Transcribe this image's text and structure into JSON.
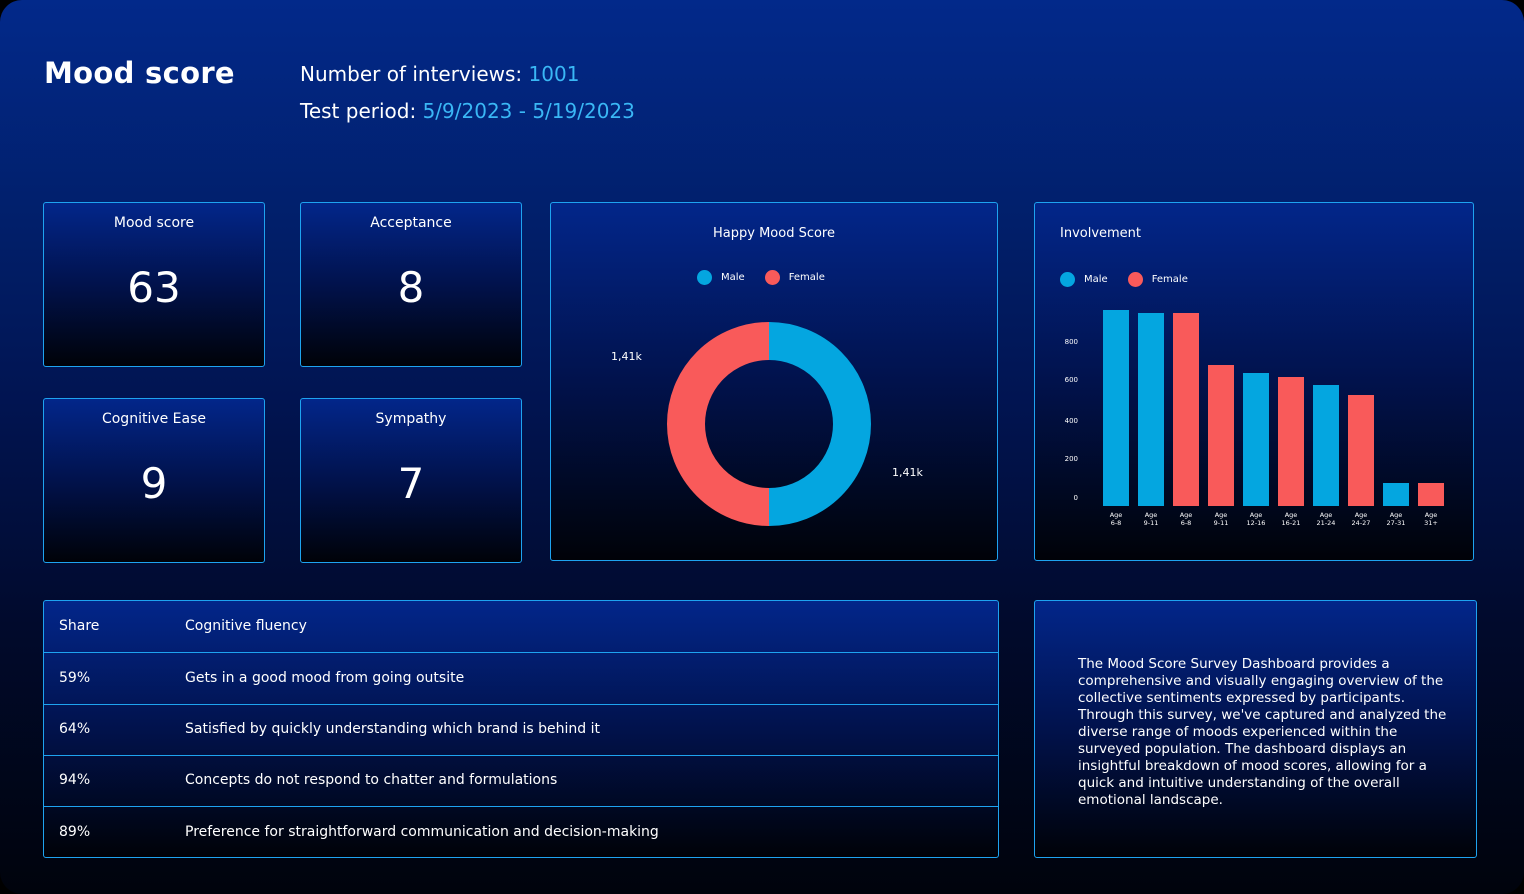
{
  "header": {
    "title": "Mood score",
    "interviews_label": "Number of interviews:",
    "interviews_value": "1001",
    "period_label": "Test period:",
    "period_value": "5/9/2023 - 5/19/2023"
  },
  "kpis": [
    {
      "label": "Mood score",
      "value": "63"
    },
    {
      "label": "Acceptance",
      "value": "8"
    },
    {
      "label": "Cognitive Ease",
      "value": "9"
    },
    {
      "label": "Sympathy",
      "value": "7"
    }
  ],
  "colors": {
    "male": "#04a6e0",
    "female": "#f95a5a",
    "border": "#1ea3f0"
  },
  "donut": {
    "title": "Happy Mood Score",
    "legend": [
      "Male",
      "Female"
    ],
    "labels": {
      "female": "1,41k",
      "male": "1,41k"
    }
  },
  "involvement": {
    "title": "Involvement",
    "legend": [
      "Male",
      "Female"
    ]
  },
  "chart_data": [
    {
      "type": "pie",
      "title": "Happy Mood Score",
      "categories": [
        "Male",
        "Female"
      ],
      "values": [
        1410,
        1410
      ],
      "value_labels": [
        "1,41k",
        "1,41k"
      ],
      "donut": true
    },
    {
      "type": "bar",
      "title": "Involvement",
      "categories": [
        [
          "Age",
          "6-8"
        ],
        [
          "Age",
          "9-11"
        ],
        [
          "Age",
          "6-8"
        ],
        [
          "Age",
          "9-11"
        ],
        [
          "Age",
          "12-16"
        ],
        [
          "Age",
          "16-21"
        ],
        [
          "Age",
          "21-24"
        ],
        [
          "Age",
          "24-27"
        ],
        [
          "Age",
          "27-31"
        ],
        [
          "Age",
          "31+"
        ]
      ],
      "values": [
        980,
        965,
        965,
        705,
        665,
        645,
        605,
        555,
        115,
        115
      ],
      "bar_series": [
        "Male",
        "Male",
        "Female",
        "Female",
        "Male",
        "Female",
        "Male",
        "Female",
        "Male",
        "Female"
      ],
      "yticks": [
        "800",
        "600",
        "400",
        "200",
        "0"
      ],
      "ylim": [
        0,
        1000
      ]
    }
  ],
  "table": {
    "headers": [
      "Share",
      "Cognitive fluency"
    ],
    "rows": [
      [
        "59%",
        "Gets in a good mood from going outsite"
      ],
      [
        "64%",
        "Satisfied by quickly understanding which brand is behind it"
      ],
      [
        "94%",
        "Concepts do not respond to chatter and formulations"
      ],
      [
        "89%",
        "Preference for straightforward communication and decision-making"
      ]
    ]
  },
  "description": "The Mood Score Survey Dashboard provides a comprehensive and visually engaging overview of the collective sentiments expressed by participants. Through this survey, we've captured and analyzed the diverse range of moods experienced within the surveyed population. The dashboard displays an insightful breakdown of mood scores, allowing for a quick and intuitive understanding of the overall emotional landscape."
}
